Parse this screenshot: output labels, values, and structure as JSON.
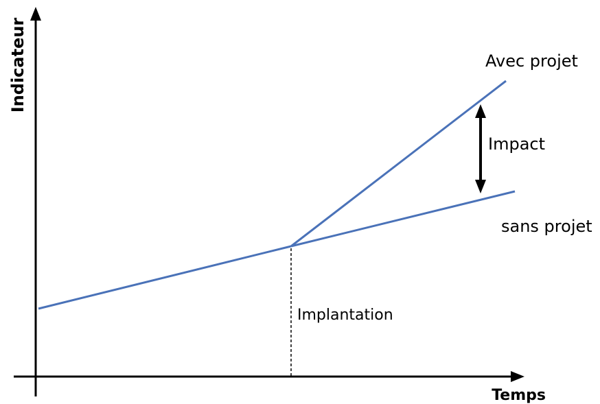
{
  "y_axis": {
    "label": "Indicateur"
  },
  "x_axis": {
    "label": "Temps"
  },
  "lines": {
    "with_project": "Avec projet",
    "without_project": "sans projet"
  },
  "annotations": {
    "impact": "Impact",
    "implantation": "Implantation"
  },
  "colors": {
    "line": "#4a72b8",
    "axis": "#000000"
  }
}
